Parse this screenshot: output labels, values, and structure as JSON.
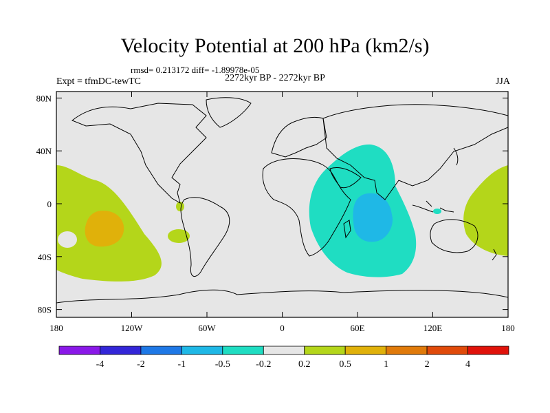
{
  "title": "Velocity Potential at 200 hPa (km2/s)",
  "stats_line": "rmsd= 0.213172 diff= -1.89978e-05",
  "experiment": "Expt = tfmDC-tewTC",
  "period": "2272kyr BP - 2272kyr BP",
  "season": "JJA",
  "lat_ticks": [
    {
      "label": "80N",
      "lat": 80
    },
    {
      "label": "40N",
      "lat": 40
    },
    {
      "label": "0",
      "lat": 0
    },
    {
      "label": "40S",
      "lat": -40
    },
    {
      "label": "80S",
      "lat": -80
    }
  ],
  "lon_ticks": [
    {
      "label": "180",
      "lon": -180
    },
    {
      "label": "120W",
      "lon": -120
    },
    {
      "label": "60W",
      "lon": -60
    },
    {
      "label": "0",
      "lon": 0
    },
    {
      "label": "60E",
      "lon": 60
    },
    {
      "label": "120E",
      "lon": 120
    },
    {
      "label": "180",
      "lon": 180
    }
  ],
  "colorbar": {
    "colors": [
      "#8a18e8",
      "#3326d8",
      "#1e78e6",
      "#1fb8e6",
      "#1fddc2",
      "#e6e6e6",
      "#b4d61a",
      "#e0b10a",
      "#e07a0a",
      "#e04a0a",
      "#e0120a"
    ],
    "labels": [
      "-4",
      "-2",
      "-1",
      "-0.5",
      "-0.2",
      "0.2",
      "0.5",
      "1",
      "2",
      "4"
    ]
  },
  "colors": {
    "background": "#e6e6e6",
    "pos_02": "#b4d61a",
    "pos_05": "#e0b10a",
    "neg_02": "#1fddc2",
    "neg_05": "#1fb8e6"
  }
}
